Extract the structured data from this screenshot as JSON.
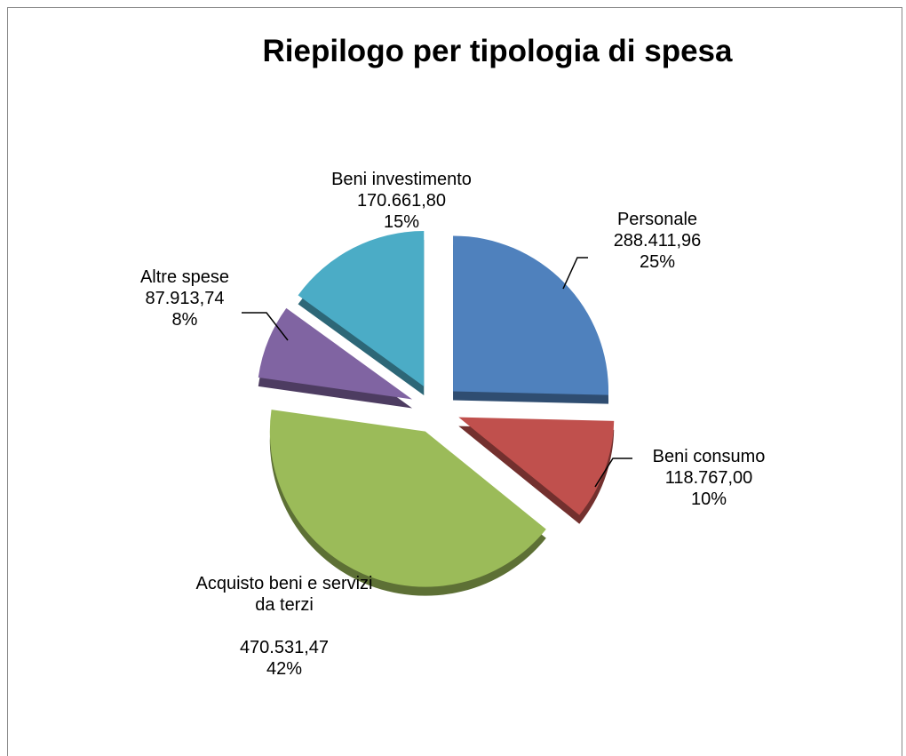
{
  "chart_data": {
    "type": "pie",
    "title": "Riepilogo per tipologia di spesa",
    "categories": [
      "Personale",
      "Beni consumo",
      "Acquisto beni e servizi da terzi",
      "Altre spese",
      "Beni investimento"
    ],
    "values": [
      288411.96,
      118767.0,
      470531.47,
      87913.74,
      170661.8
    ],
    "value_labels": [
      "288.411,96",
      "118.767,00",
      "470.531,47",
      "87.913,74",
      "170.661,80"
    ],
    "percents": [
      25,
      10,
      42,
      8,
      15
    ],
    "percent_labels": [
      "25%",
      "10%",
      "42%",
      "8%",
      "15%"
    ],
    "colors": [
      "#4f81bd",
      "#c0504d",
      "#9bbb59",
      "#8064a2",
      "#4bacc6"
    ]
  }
}
